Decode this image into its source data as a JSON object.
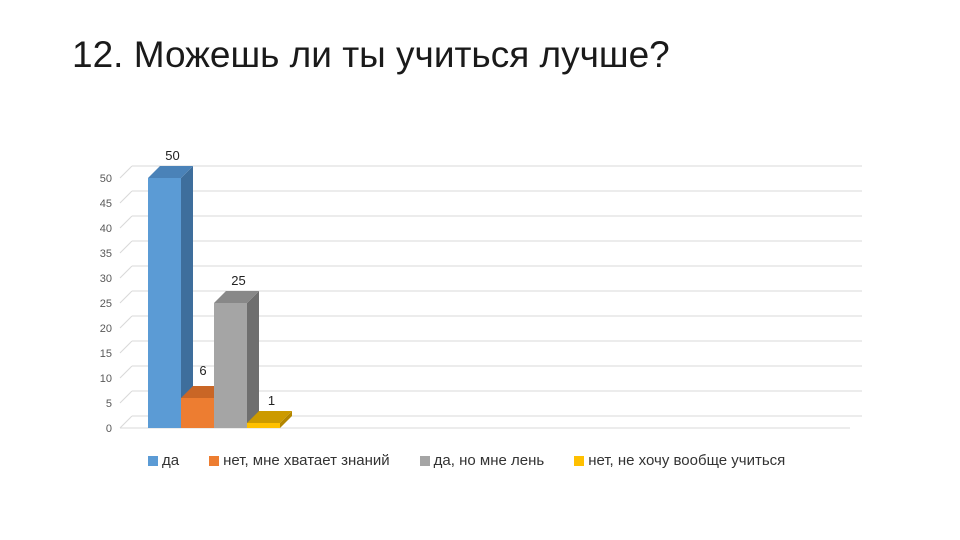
{
  "title": "12. Можешь ли ты учиться лучше?",
  "chart_data": {
    "type": "bar",
    "style": "3d-clustered-column",
    "ylim": [
      0,
      50
    ],
    "y_ticks": [
      0,
      5,
      10,
      15,
      20,
      25,
      30,
      35,
      40,
      45,
      50
    ],
    "grid": true,
    "legend_position": "bottom",
    "series": [
      {
        "name": "да",
        "value": 50,
        "color": "#5B9BD5",
        "side": "#3E6E9C",
        "top": "#4A82B8"
      },
      {
        "name": "нет, мне хватает знаний",
        "value": 6,
        "color": "#ED7D31",
        "side": "#B35A1E",
        "top": "#C96626"
      },
      {
        "name": "да, но мне лень",
        "value": 25,
        "color": "#A5A5A5",
        "side": "#6F6F6F",
        "top": "#888888"
      },
      {
        "name": "нет, не хочу вообще учиться",
        "value": 1,
        "color": "#FFC000",
        "side": "#B38600",
        "top": "#CC9A00"
      }
    ]
  }
}
